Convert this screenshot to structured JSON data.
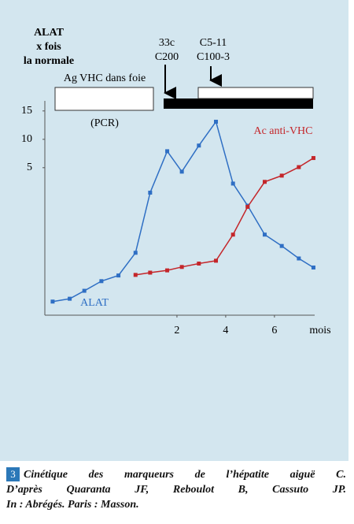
{
  "chart_data": {
    "type": "line",
    "y_axis_label_lines": [
      "ALAT",
      "x fois",
      "la normale"
    ],
    "x_axis_label": "mois",
    "x": [
      -3.1,
      -2.4,
      -1.8,
      -1.1,
      -0.4,
      0.3,
      0.9,
      1.6,
      2.2,
      2.9,
      3.6,
      4.3,
      4.9,
      5.6,
      6.3,
      7.0,
      7.6
    ],
    "xlim": [
      -3.42,
      7.65
    ],
    "ylim": [
      -21,
      16.5
    ],
    "xticks": [
      2,
      4,
      6
    ],
    "yticks": [
      5,
      10,
      15
    ],
    "series": [
      {
        "name": "ALAT",
        "color": "#2f6fc4",
        "values": [
          -18.6,
          -18.1,
          -16.7,
          -15,
          -14,
          -10,
          0.6,
          7.9,
          4.3,
          8.9,
          13.1,
          2.2,
          -1.7,
          -6.8,
          -8.8,
          -11,
          -12.6
        ]
      },
      {
        "name": "Ac anti-VHC",
        "color": "#c4262a",
        "values": [
          null,
          null,
          null,
          null,
          null,
          -13.9,
          -13.5,
          -13.1,
          -12.5,
          -11.9,
          -11.4,
          -6.8,
          -1.9,
          2.5,
          3.6,
          5.1,
          6.7
        ]
      }
    ],
    "annotations": [
      "Ag VHC dans foie",
      "(PCR)",
      "33c",
      "C200",
      "C5-11",
      "C100-3"
    ]
  },
  "caption": {
    "number": "3",
    "lines": [
      "Cinétique des marqueurs de l’hépatite aiguë C.",
      "D’après Quaranta JF, Reboulot B, Cassuto JP.",
      "In : Abrégés. Paris : Masson."
    ]
  }
}
